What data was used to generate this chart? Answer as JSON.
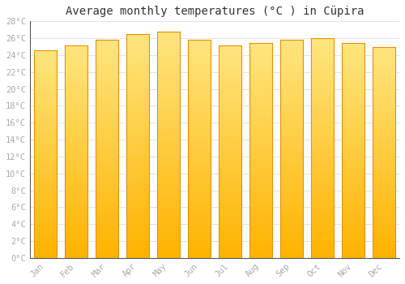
{
  "title": "Average monthly temperatures (°C ) in Cüpira",
  "months": [
    "Jan",
    "Feb",
    "Mar",
    "Apr",
    "May",
    "Jun",
    "Jul",
    "Aug",
    "Sep",
    "Oct",
    "Nov",
    "Dec"
  ],
  "values": [
    24.6,
    25.1,
    25.8,
    26.5,
    26.8,
    25.8,
    25.1,
    25.4,
    25.8,
    26.0,
    25.4,
    25.0
  ],
  "bar_color_bottom": "#FFB300",
  "bar_color_top": "#FFE082",
  "bar_edge_color": "#E6900A",
  "background_color": "#ffffff",
  "grid_color": "#dddddd",
  "ylim": [
    0,
    28
  ],
  "ytick_step": 2,
  "title_fontsize": 10,
  "tick_fontsize": 7.5,
  "tick_color": "#aaaaaa",
  "font_family": "monospace"
}
